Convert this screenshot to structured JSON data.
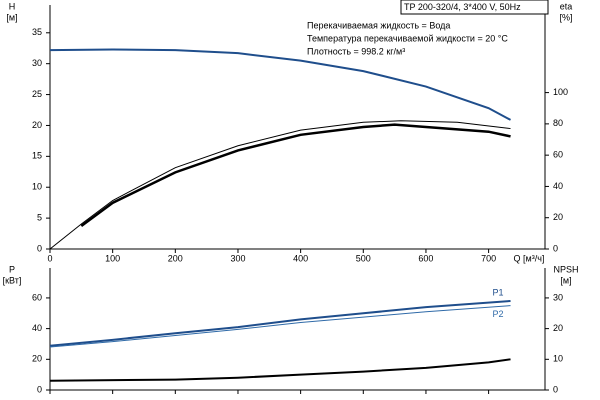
{
  "chart_data": [
    {
      "type": "line",
      "header": "TP 200-320/4, 3*400 V, 50Hz",
      "annotations": [
        "Перекачиваемая жидкость = Вода",
        "Температура перекачиваемой жидкости = 20 °C",
        "Плотность = 998.2 кг/м³"
      ],
      "xlabel": "Q [м³/ч]",
      "ylabel": "H",
      "yunit": "[м]",
      "y2label": "eta",
      "y2unit": "[%]",
      "xlim": [
        0,
        790
      ],
      "xticks": [
        0,
        100,
        200,
        300,
        400,
        500,
        600,
        700
      ],
      "ylim": [
        0,
        39.5
      ],
      "yticks": [
        0,
        5,
        10,
        15,
        20,
        25,
        30,
        35
      ],
      "y2lim": [
        0,
        156
      ],
      "y2ticks": [
        0,
        20,
        40,
        60,
        80,
        100
      ],
      "series": [
        {
          "color": "#1f4e8c",
          "width": 2,
          "x": [
            0,
            100,
            200,
            300,
            400,
            500,
            600,
            700,
            735
          ],
          "values": [
            32.2,
            32.3,
            32.2,
            31.7,
            30.5,
            28.8,
            26.3,
            22.8,
            20.9
          ]
        },
        {
          "color": "#000000",
          "width": 1,
          "axis": "y2",
          "x": [
            0,
            50,
            100,
            200,
            300,
            400,
            500,
            560,
            650,
            735
          ],
          "values": [
            0,
            16,
            31,
            52,
            66,
            76,
            81,
            82,
            81,
            77
          ]
        },
        {
          "color": "#000000",
          "width": 2.5,
          "axis": "y2",
          "x": [
            50,
            100,
            200,
            300,
            400,
            500,
            550,
            600,
            700,
            735
          ],
          "values": [
            14.7,
            29.5,
            49,
            63,
            73,
            78,
            79.5,
            78,
            75,
            72
          ]
        }
      ]
    },
    {
      "type": "line",
      "ylabel": "P",
      "yunit": "[кВт]",
      "y2label": "NPSH",
      "y2unit": "[м]",
      "xlim": [
        0,
        790
      ],
      "ylim": [
        0,
        79.5
      ],
      "yticks": [
        0,
        20,
        40,
        60
      ],
      "y2lim": [
        0,
        39.75
      ],
      "y2ticks": [
        0,
        10,
        20,
        30
      ],
      "series": [
        {
          "name": "P1",
          "color": "#1f4e8c",
          "width": 2,
          "x": [
            0,
            100,
            200,
            300,
            400,
            500,
            600,
            735
          ],
          "values": [
            28.8,
            32.7,
            37,
            41,
            46,
            50,
            54,
            58
          ]
        },
        {
          "name": "P2",
          "color": "#2f6aa8",
          "width": 1,
          "x": [
            0,
            100,
            200,
            300,
            400,
            500,
            600,
            735
          ],
          "values": [
            28,
            31.5,
            35.5,
            39.5,
            44,
            47.5,
            51,
            55
          ]
        },
        {
          "color": "#000000",
          "width": 2,
          "axis": "y2",
          "x": [
            0,
            200,
            300,
            400,
            500,
            600,
            700,
            735
          ],
          "values": [
            3,
            3.4,
            4,
            5,
            6,
            7.2,
            9,
            10
          ]
        }
      ]
    }
  ]
}
